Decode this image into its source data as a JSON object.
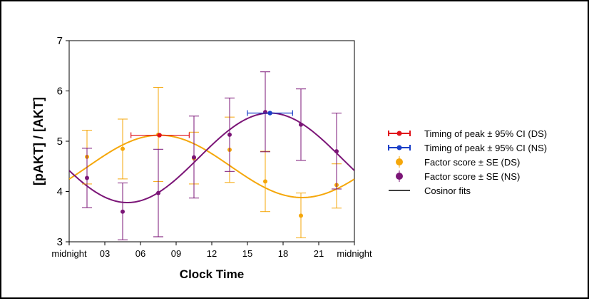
{
  "chart_data": {
    "type": "scatter",
    "xlabel": "Clock Time",
    "ylabel": "[pAKT] / [AKT]",
    "xlim": [
      0,
      24
    ],
    "ylim": [
      3,
      7
    ],
    "x_ticks": [
      {
        "value": 0,
        "label": "midnight"
      },
      {
        "value": 3,
        "label": "03"
      },
      {
        "value": 6,
        "label": "06"
      },
      {
        "value": 9,
        "label": "09"
      },
      {
        "value": 12,
        "label": "12"
      },
      {
        "value": 15,
        "label": "15"
      },
      {
        "value": 18,
        "label": "18"
      },
      {
        "value": 21,
        "label": "21"
      },
      {
        "value": 24,
        "label": "midnight"
      }
    ],
    "y_ticks": [
      3,
      4,
      5,
      6,
      7
    ],
    "grid": false,
    "legend_position": "right",
    "series": [
      {
        "name": "Factor score ± SE (DS)",
        "color": "#f5a70a",
        "x": [
          1.5,
          4.5,
          7.5,
          10.5,
          13.5,
          16.5,
          19.5,
          22.5
        ],
        "y": [
          4.69,
          4.85,
          5.13,
          4.66,
          4.83,
          4.2,
          3.52,
          4.13
        ],
        "lower": [
          4.15,
          4.25,
          4.2,
          4.15,
          4.18,
          3.6,
          3.08,
          3.67
        ],
        "upper": [
          5.22,
          5.44,
          6.07,
          5.18,
          5.48,
          4.8,
          3.97,
          4.55
        ]
      },
      {
        "name": "Factor score ± SE (NS)",
        "color": "#7b1577",
        "x": [
          1.5,
          4.5,
          7.5,
          10.5,
          13.5,
          16.5,
          19.5,
          22.5
        ],
        "y": [
          4.27,
          3.6,
          3.97,
          4.68,
          5.13,
          5.58,
          5.33,
          4.8
        ],
        "lower": [
          3.68,
          3.04,
          3.1,
          3.87,
          4.4,
          4.79,
          4.62,
          4.05
        ],
        "upper": [
          4.86,
          4.17,
          4.84,
          5.5,
          5.86,
          6.38,
          6.04,
          5.56
        ]
      }
    ],
    "peaks": [
      {
        "name": "Timing of peak ± 95% CI (DS)",
        "color": "#e0121a",
        "x": 7.6,
        "y": 5.12,
        "x_low": 5.2,
        "x_high": 10.1
      },
      {
        "name": "Timing of peak ± 95% CI (NS)",
        "color": "#1a3fc8",
        "x": 16.9,
        "y": 5.56,
        "x_low": 15.0,
        "x_high": 18.8
      }
    ],
    "fits": [
      {
        "series": "DS",
        "color": "#f5a70a",
        "mesor": 4.5,
        "amplitude": 0.62,
        "acrophase": 7.6
      },
      {
        "series": "NS",
        "color": "#7b1577",
        "mesor": 4.67,
        "amplitude": 0.89,
        "acrophase": 16.9
      }
    ],
    "legend": [
      {
        "label": "Timing of peak ± 95% CI (DS)",
        "color": "#e0121a",
        "kind": "peak"
      },
      {
        "label": "Timing of peak ± 95% CI (NS)",
        "color": "#1a3fc8",
        "kind": "peak"
      },
      {
        "label": "Factor score ± SE (DS)",
        "color": "#f5a70a",
        "kind": "point"
      },
      {
        "label": "Factor score ± SE (NS)",
        "color": "#7b1577",
        "kind": "point"
      },
      {
        "label": "Cosinor fits",
        "color": "#000000",
        "kind": "line"
      }
    ]
  }
}
